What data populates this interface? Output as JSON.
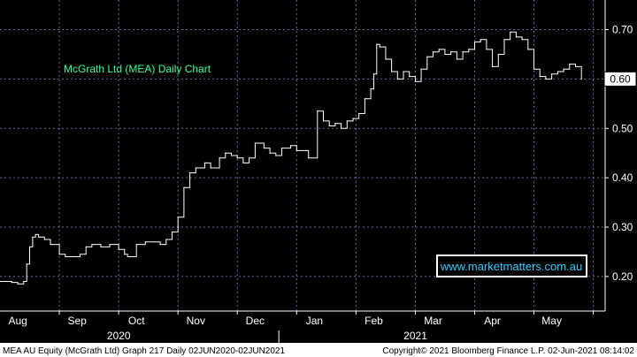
{
  "chart_data": {
    "type": "line",
    "style": "stepped-price-bars",
    "title": "McGrath Ltd (MEA) Daily Chart",
    "watermark": "www.marketmatters.com.au",
    "y_ticks": [
      "0.20",
      "0.30",
      "0.40",
      "0.50",
      "0.60",
      "0.70"
    ],
    "ylim": [
      0.13,
      0.76
    ],
    "last_price_label": "0.60",
    "last_price": 0.6,
    "grid": true,
    "x_months": [
      {
        "label": "Aug",
        "t": 0.3
      },
      {
        "label": "Sep",
        "t": 1.3
      },
      {
        "label": "Oct",
        "t": 2.3
      },
      {
        "label": "Nov",
        "t": 3.3
      },
      {
        "label": "Dec",
        "t": 4.3
      },
      {
        "label": "Jan",
        "t": 5.3
      },
      {
        "label": "Feb",
        "t": 6.3
      },
      {
        "label": "Mar",
        "t": 7.3
      },
      {
        "label": "Apr",
        "t": 8.3
      },
      {
        "label": "May",
        "t": 9.3
      }
    ],
    "x_years": [
      {
        "label": "2020",
        "t": 2.3
      },
      {
        "label": "2021",
        "t": 7.3
      }
    ],
    "year_divider_t": 4.7,
    "x_range": [
      0,
      10.2
    ],
    "series": [
      {
        "color": "#ffffff",
        "points": [
          [
            0.0,
            0.19
          ],
          [
            0.1,
            0.19
          ],
          [
            0.2,
            0.188
          ],
          [
            0.3,
            0.185
          ],
          [
            0.4,
            0.19
          ],
          [
            0.45,
            0.225
          ],
          [
            0.5,
            0.26
          ],
          [
            0.55,
            0.28
          ],
          [
            0.6,
            0.285
          ],
          [
            0.65,
            0.28
          ],
          [
            0.75,
            0.275
          ],
          [
            0.85,
            0.265
          ],
          [
            1.0,
            0.245
          ],
          [
            1.1,
            0.24
          ],
          [
            1.2,
            0.24
          ],
          [
            1.35,
            0.245
          ],
          [
            1.45,
            0.26
          ],
          [
            1.55,
            0.265
          ],
          [
            1.7,
            0.26
          ],
          [
            1.85,
            0.265
          ],
          [
            2.0,
            0.255
          ],
          [
            2.1,
            0.245
          ],
          [
            2.15,
            0.24
          ],
          [
            2.3,
            0.265
          ],
          [
            2.45,
            0.27
          ],
          [
            2.6,
            0.27
          ],
          [
            2.7,
            0.265
          ],
          [
            2.8,
            0.275
          ],
          [
            2.9,
            0.29
          ],
          [
            3.0,
            0.32
          ],
          [
            3.1,
            0.38
          ],
          [
            3.2,
            0.41
          ],
          [
            3.3,
            0.42
          ],
          [
            3.45,
            0.43
          ],
          [
            3.55,
            0.42
          ],
          [
            3.7,
            0.44
          ],
          [
            3.8,
            0.45
          ],
          [
            3.9,
            0.445
          ],
          [
            4.0,
            0.44
          ],
          [
            4.1,
            0.43
          ],
          [
            4.2,
            0.44
          ],
          [
            4.3,
            0.47
          ],
          [
            4.45,
            0.46
          ],
          [
            4.55,
            0.45
          ],
          [
            4.65,
            0.445
          ],
          [
            4.75,
            0.46
          ],
          [
            4.9,
            0.465
          ],
          [
            5.0,
            0.455
          ],
          [
            5.1,
            0.455
          ],
          [
            5.2,
            0.44
          ],
          [
            5.35,
            0.535
          ],
          [
            5.45,
            0.515
          ],
          [
            5.55,
            0.505
          ],
          [
            5.65,
            0.51
          ],
          [
            5.75,
            0.5
          ],
          [
            5.85,
            0.515
          ],
          [
            5.95,
            0.52
          ],
          [
            6.05,
            0.53
          ],
          [
            6.15,
            0.56
          ],
          [
            6.25,
            0.58
          ],
          [
            6.3,
            0.61
          ],
          [
            6.35,
            0.67
          ],
          [
            6.4,
            0.665
          ],
          [
            6.5,
            0.64
          ],
          [
            6.6,
            0.615
          ],
          [
            6.7,
            0.6
          ],
          [
            6.8,
            0.615
          ],
          [
            6.9,
            0.605
          ],
          [
            7.0,
            0.595
          ],
          [
            7.1,
            0.62
          ],
          [
            7.2,
            0.645
          ],
          [
            7.3,
            0.655
          ],
          [
            7.4,
            0.66
          ],
          [
            7.5,
            0.65
          ],
          [
            7.6,
            0.655
          ],
          [
            7.7,
            0.64
          ],
          [
            7.8,
            0.655
          ],
          [
            7.9,
            0.66
          ],
          [
            8.0,
            0.675
          ],
          [
            8.1,
            0.68
          ],
          [
            8.2,
            0.66
          ],
          [
            8.3,
            0.625
          ],
          [
            8.4,
            0.65
          ],
          [
            8.5,
            0.68
          ],
          [
            8.6,
            0.695
          ],
          [
            8.7,
            0.685
          ],
          [
            8.8,
            0.68
          ],
          [
            8.9,
            0.66
          ],
          [
            9.0,
            0.62
          ],
          [
            9.1,
            0.605
          ],
          [
            9.2,
            0.6
          ],
          [
            9.3,
            0.61
          ],
          [
            9.4,
            0.615
          ],
          [
            9.5,
            0.62
          ],
          [
            9.6,
            0.63
          ],
          [
            9.7,
            0.625
          ],
          [
            9.8,
            0.6
          ]
        ]
      }
    ]
  },
  "footer": {
    "left": "MEA AU Equity (McGrath Ltd) Graph 217  Daily 02JUN2020-02JUN2021",
    "right": "Copyright© 2021 Bloomberg Finance L.P.     02-Jun-2021 08:14:02"
  },
  "colors": {
    "background": "#000000",
    "grid": "#6a6a9a",
    "line": "#ffffff",
    "title": "#33ff99",
    "watermark": "#33ccff",
    "axis_text": "#ffffff"
  }
}
